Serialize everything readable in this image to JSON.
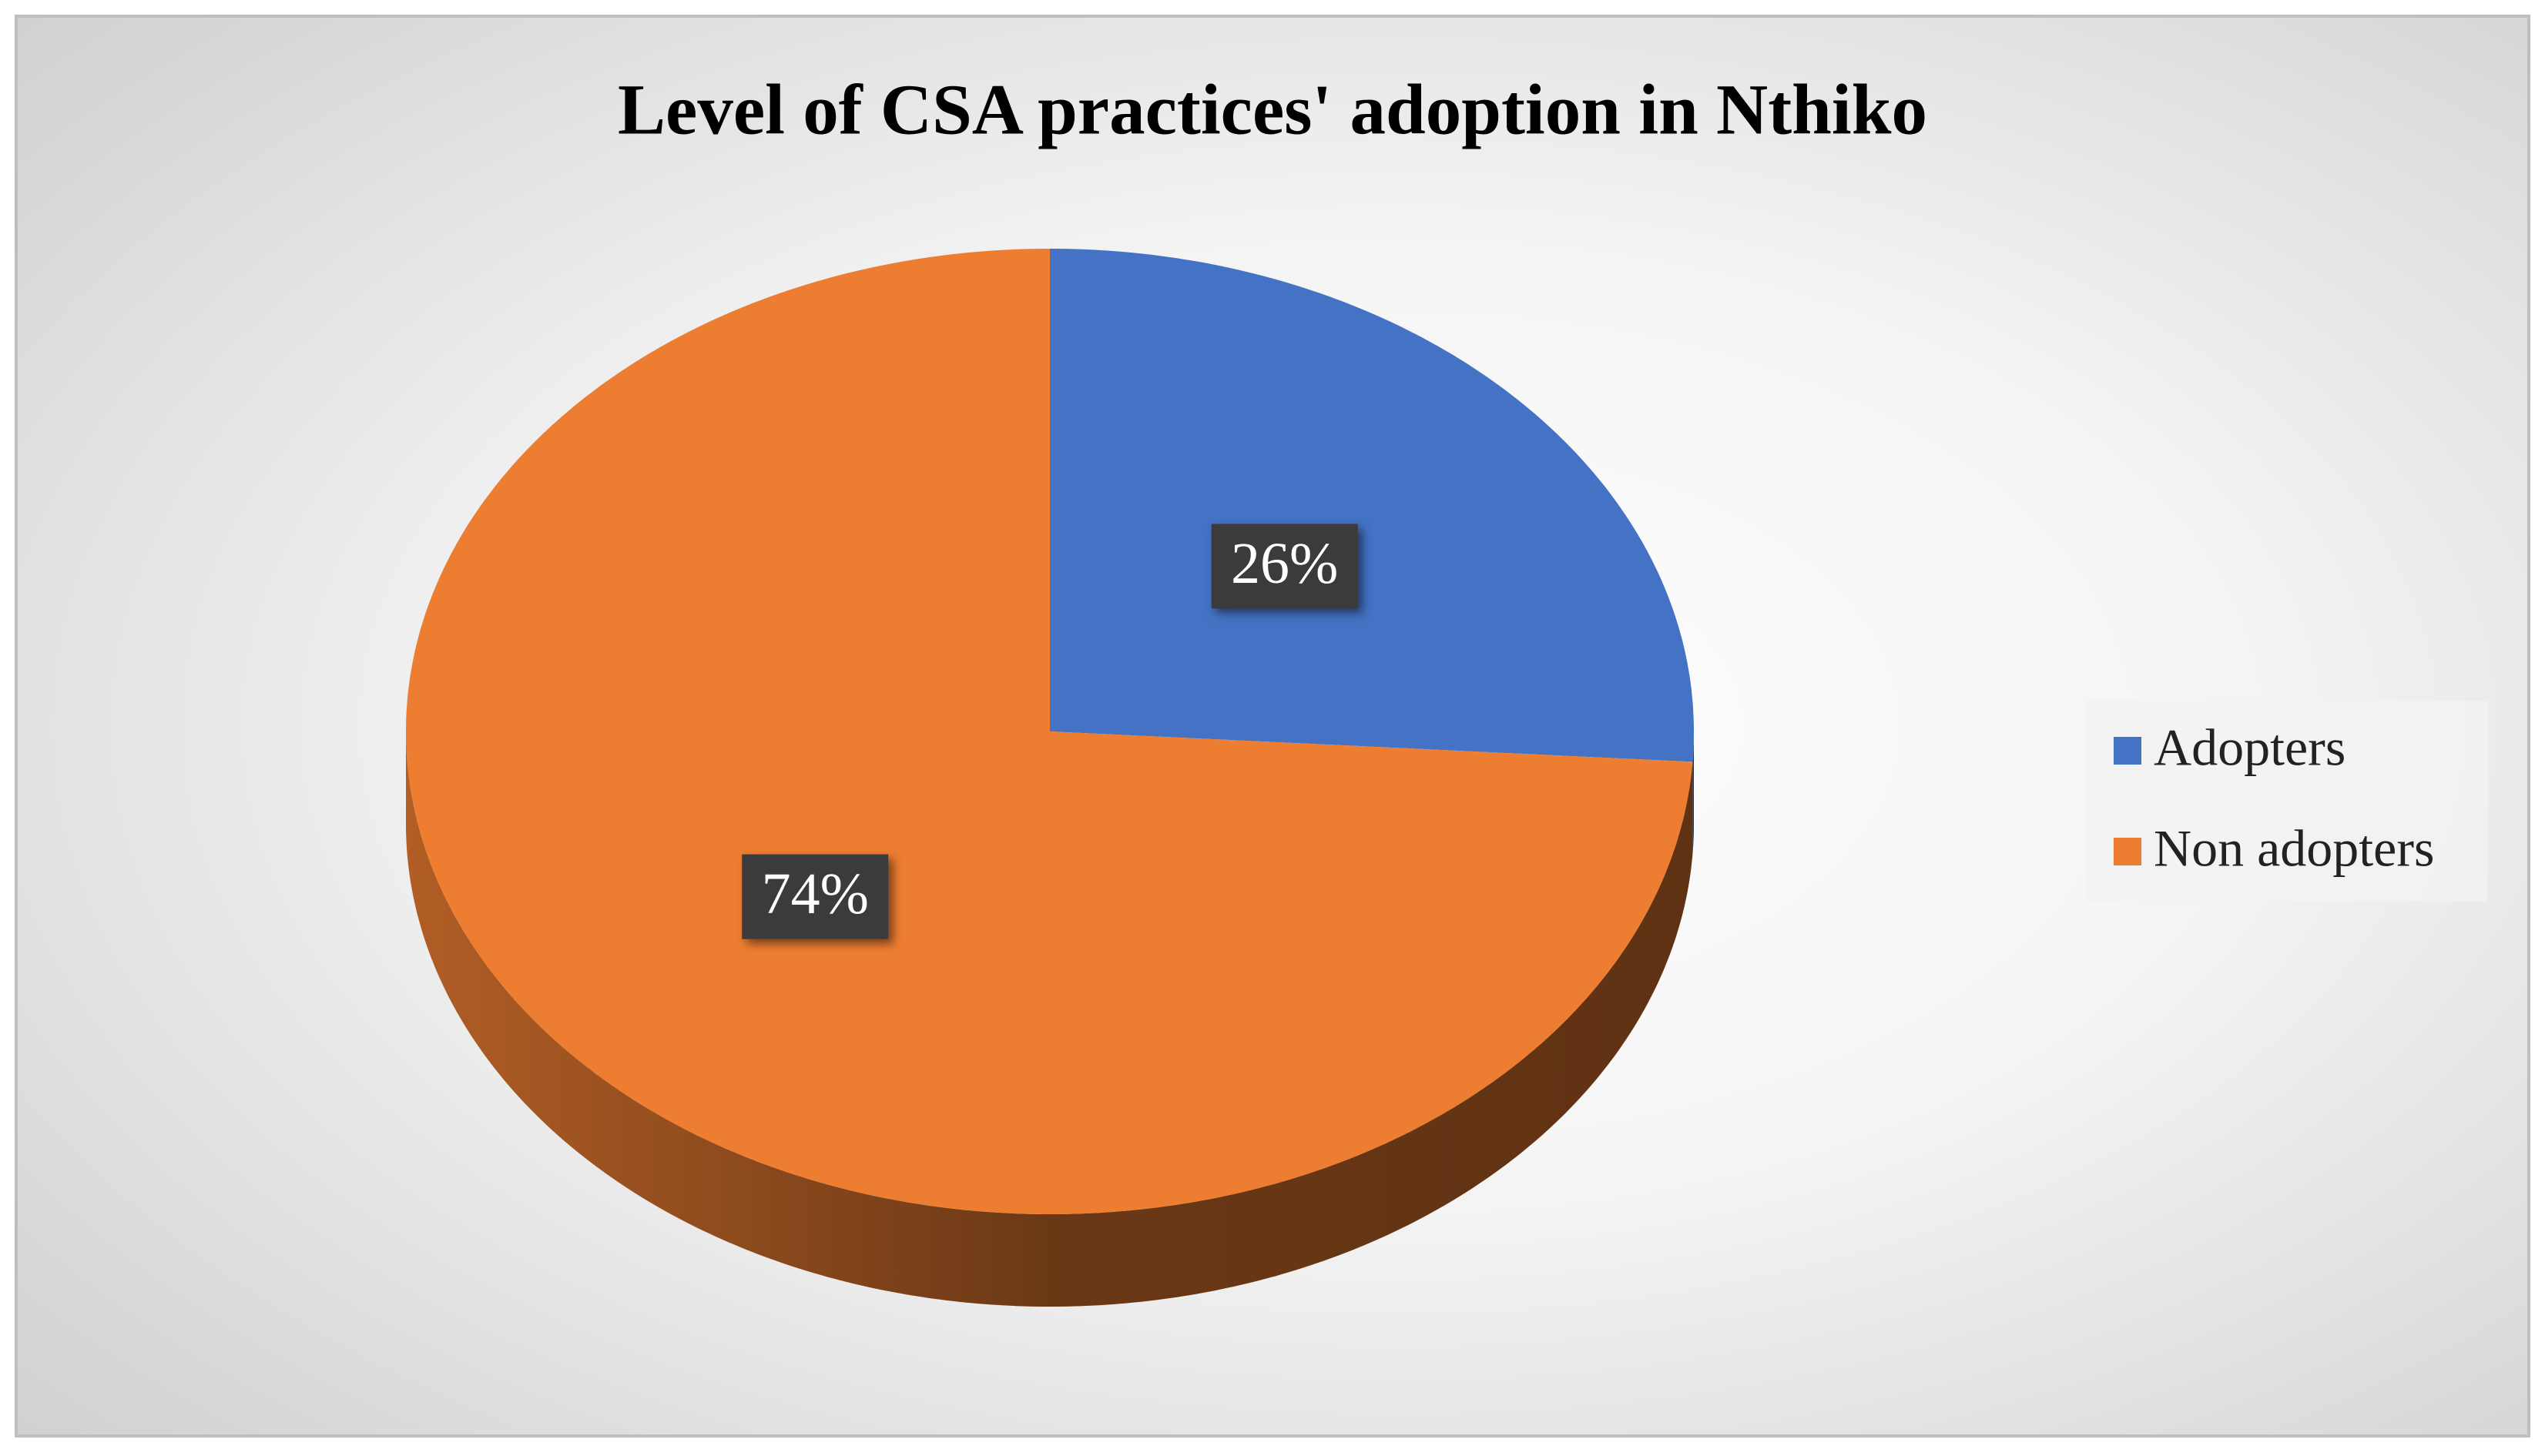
{
  "chart_data": {
    "type": "pie",
    "title": "Level of CSA practices' adoption in Nthiko",
    "categories": [
      "Adopters",
      "Non adopters"
    ],
    "values": [
      26,
      74
    ],
    "value_labels": [
      "26%",
      "74%"
    ],
    "colors": [
      "#4472c4",
      "#ed7d31"
    ],
    "legend": "right"
  }
}
